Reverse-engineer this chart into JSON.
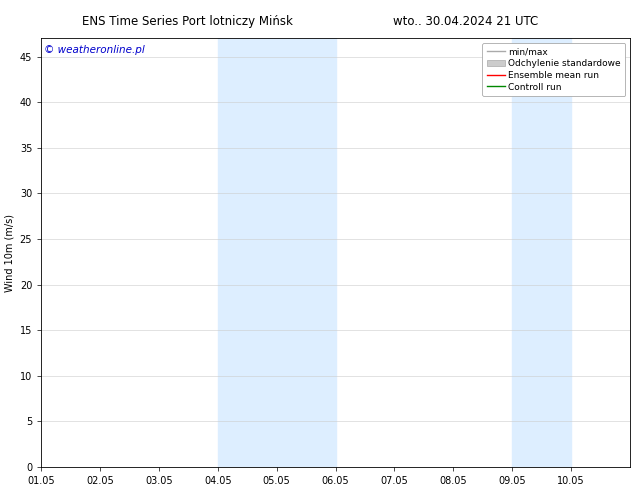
{
  "title_left": "ENS Time Series Port lotniczy Mińsk",
  "title_right": "wto.. 30.04.2024 21 UTC",
  "ylabel": "Wind 10m (m/s)",
  "watermark": "© weatheronline.pl",
  "watermark_color": "#0000cc",
  "xlim_start": 0,
  "xlim_end": 10,
  "ylim_min": 0,
  "ylim_max": 47,
  "yticks": [
    0,
    5,
    10,
    15,
    20,
    25,
    30,
    35,
    40,
    45
  ],
  "xtick_labels": [
    "01.05",
    "02.05",
    "03.05",
    "04.05",
    "05.05",
    "06.05",
    "07.05",
    "08.05",
    "09.05",
    "10.05"
  ],
  "xtick_positions": [
    0,
    1,
    2,
    3,
    4,
    5,
    6,
    7,
    8,
    9
  ],
  "shaded_regions": [
    {
      "x_start": 3,
      "x_end": 5,
      "color": "#ddeeff"
    },
    {
      "x_start": 8,
      "x_end": 9,
      "color": "#ddeeff"
    }
  ],
  "legend_entries": [
    {
      "label": "min/max",
      "color": "#aaaaaa",
      "linewidth": 1.0,
      "linestyle": "-",
      "type": "line"
    },
    {
      "label": "Odchylenie standardowe",
      "color": "#cccccc",
      "linewidth": 5,
      "linestyle": "-",
      "type": "patch"
    },
    {
      "label": "Ensemble mean run",
      "color": "#ff0000",
      "linewidth": 1.0,
      "linestyle": "-",
      "type": "line"
    },
    {
      "label": "Controll run",
      "color": "#008800",
      "linewidth": 1.0,
      "linestyle": "-",
      "type": "line"
    }
  ],
  "background_color": "#ffffff",
  "grid_color": "#cccccc",
  "font_size_title": 8.5,
  "font_size_axis": 7,
  "font_size_legend": 6.5,
  "font_size_watermark": 7.5
}
